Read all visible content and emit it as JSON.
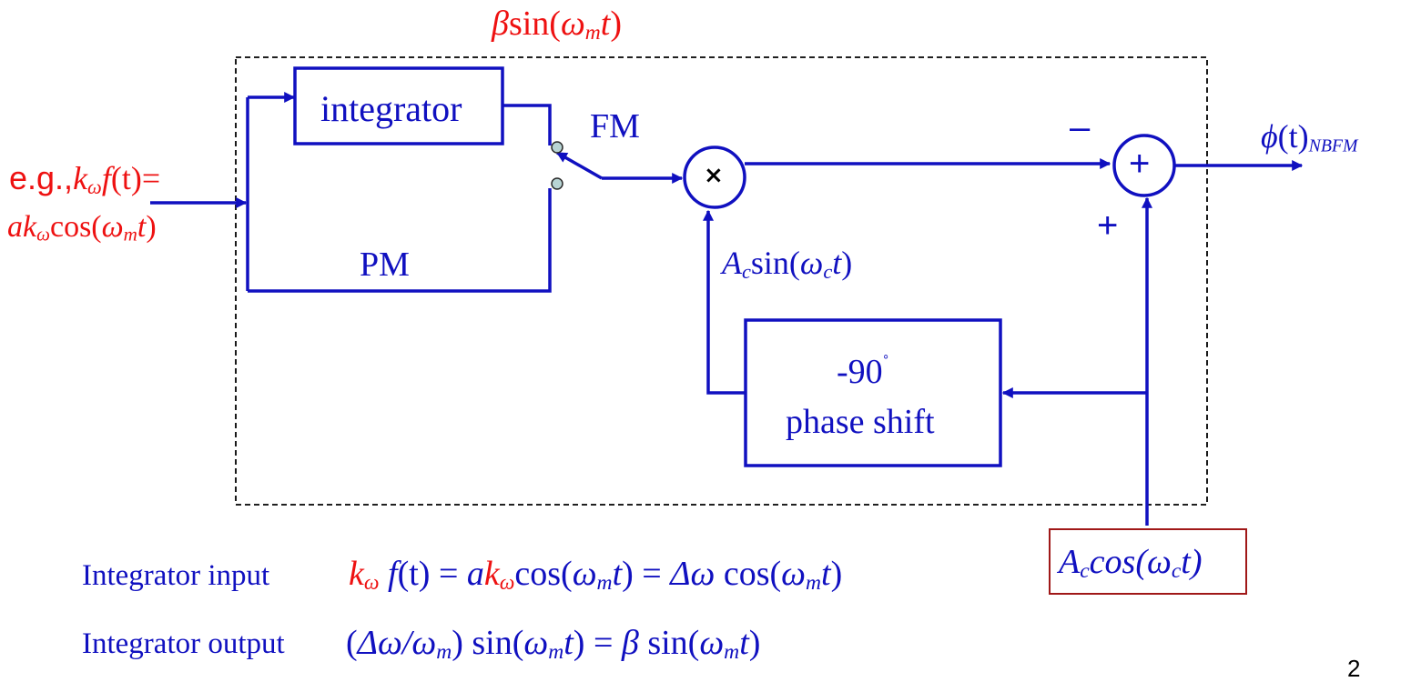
{
  "top_label": {
    "coef": "β",
    "fn": "sin(",
    "w": "ω",
    "sub": "m",
    "t": "t",
    "close": ")"
  },
  "blocks": {
    "integrator": "integrator",
    "phase_line1": "-90",
    "phase_deg": "˚",
    "phase_line2": "phase shift"
  },
  "labels": {
    "fm": "FM",
    "pm": "PM",
    "minus": "–",
    "plus": "+",
    "sum_symbol": "+",
    "multiply_symbol": "×"
  },
  "output": {
    "phi": "ϕ",
    "t": "(t)",
    "sub": "NBFM"
  },
  "carrier_sin": {
    "A": "A",
    "Asub": "c",
    "fn": "sin(",
    "w": "ω",
    "wsub": "c",
    "t": "t",
    "close": ")"
  },
  "carrier_cos": {
    "A": "A",
    "Asub": "c",
    "fn": "cos(",
    "w": "ω",
    "wsub": "c",
    "t": "t",
    "close": ")"
  },
  "input": {
    "eg": "e.g.,",
    "k": "k",
    "ksub": "ω",
    "f": "f",
    "t": "(t)",
    "eq": "=",
    "line2_a": "ak",
    "line2_sub": "ω",
    "line2_fn": "cos(",
    "line2_w": "ω",
    "line2_wsub": "m",
    "line2_t": "t",
    "line2_close": ")"
  },
  "eq1": {
    "label": "Integrator input",
    "k": "k",
    "ksub": "ω",
    "f": "f",
    "t": "(t) = ",
    "a": "a",
    "k2": "k",
    "k2sub": "ω",
    "fn": "cos(",
    "w": "ω",
    "wsub": "m",
    "tt": "t",
    "mid": ") = ",
    "dw": "Δω",
    "fn2": " cos(",
    "w2": "ω",
    "w2sub": "m",
    "tt2": "t",
    "close": ")"
  },
  "eq2": {
    "label": "Integrator output",
    "open": "(",
    "dw": "Δω",
    "slash": "/",
    "w": "ω",
    "wsub": "m",
    "close1": ")",
    "fn": " sin(",
    "w2": "ω",
    "w2sub": "m",
    "t": "t",
    "eq": ") = ",
    "beta": "β",
    "fn2": " sin(",
    "w3": "ω",
    "w3sub": "m",
    "t2": "t",
    "close": ")"
  },
  "page_number": "2",
  "colors": {
    "blue": "#1010c0",
    "red": "#ee1111",
    "darkred": "#a01818",
    "node": "#b8d4d4"
  }
}
